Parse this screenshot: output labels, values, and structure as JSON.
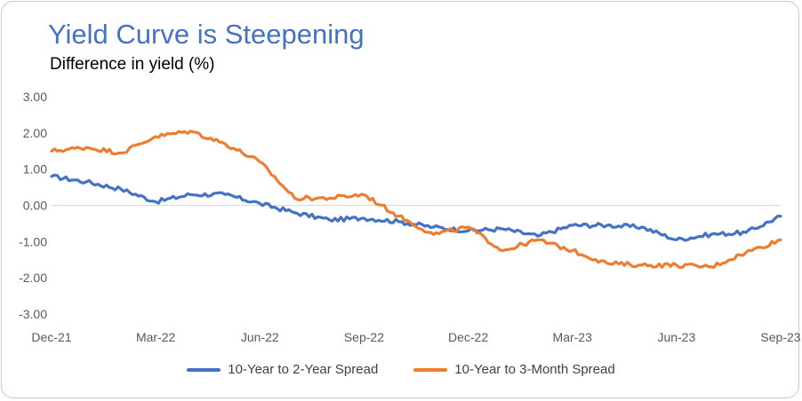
{
  "title": "Yield Curve is Steepening",
  "subtitle": "Difference in yield (%)",
  "colors": {
    "title": "#4472c4",
    "series_2y": "#4472c4",
    "series_3m": "#ed7d31",
    "axis_text": "#595959",
    "zero_line": "#d9d9d9"
  },
  "chart_data": {
    "type": "line",
    "title": "Yield Curve is Steepening",
    "subtitle": "Difference in yield (%)",
    "xlabel": "",
    "ylabel": "",
    "ylim": [
      -3,
      3
    ],
    "xlim": [
      "2021-12",
      "2023-09"
    ],
    "grid": false,
    "legend": "bottom",
    "y_ticks": [
      "3.00",
      "2.00",
      "1.00",
      "0.00",
      "-1.00",
      "-2.00",
      "-3.00"
    ],
    "x_ticks": [
      "Dec-21",
      "Mar-22",
      "Jun-22",
      "Sep-22",
      "Dec-22",
      "Mar-23",
      "Jun-23",
      "Sep-23"
    ],
    "x": [
      "2021-12-01",
      "2022-01-01",
      "2022-02-01",
      "2022-03-01",
      "2022-04-01",
      "2022-05-01",
      "2022-06-01",
      "2022-07-01",
      "2022-08-01",
      "2022-09-01",
      "2022-10-01",
      "2022-11-01",
      "2022-12-01",
      "2023-01-01",
      "2023-02-01",
      "2023-03-01",
      "2023-04-01",
      "2023-05-01",
      "2023-06-01",
      "2023-07-01",
      "2023-08-01",
      "2023-09-01"
    ],
    "series": [
      {
        "name": "10-Year to 2-Year Spread",
        "color": "#4472c4",
        "values": [
          0.8,
          0.65,
          0.45,
          0.1,
          0.3,
          0.3,
          0.05,
          -0.2,
          -0.4,
          -0.35,
          -0.45,
          -0.6,
          -0.7,
          -0.65,
          -0.85,
          -0.55,
          -0.55,
          -0.6,
          -0.95,
          -0.8,
          -0.75,
          -0.3
        ]
      },
      {
        "name": "10-Year to 3-Month Spread",
        "color": "#ed7d31",
        "values": [
          1.5,
          1.6,
          1.45,
          1.9,
          2.05,
          1.7,
          1.2,
          0.2,
          0.2,
          0.3,
          -0.3,
          -0.8,
          -0.6,
          -1.25,
          -0.95,
          -1.25,
          -1.6,
          -1.65,
          -1.65,
          -1.7,
          -1.3,
          -0.95
        ]
      }
    ]
  },
  "legend": {
    "item_2y": "10-Year to 2-Year Spread",
    "item_3m": "10-Year to 3-Month Spread"
  }
}
